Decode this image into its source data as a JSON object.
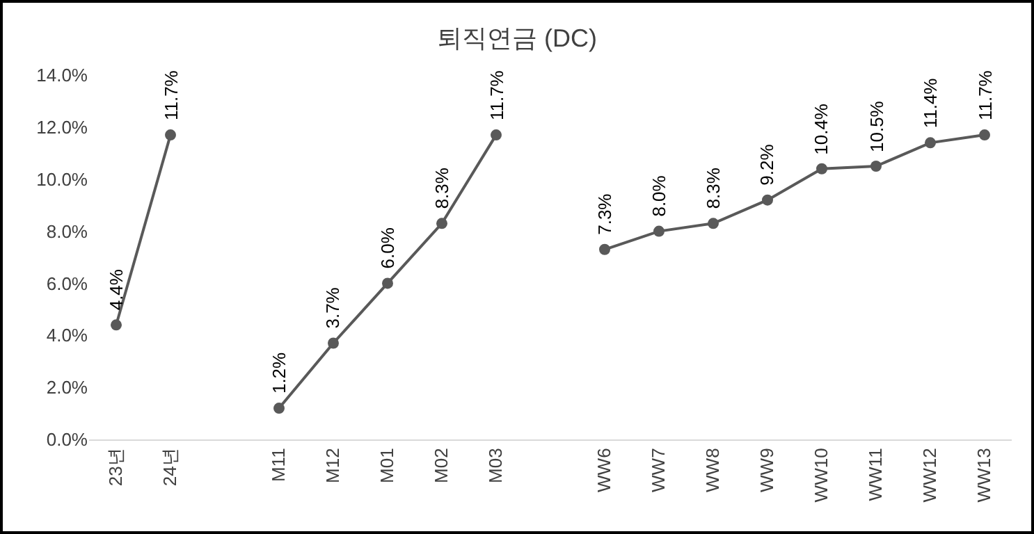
{
  "chart_data": {
    "type": "line",
    "title": "퇴직연금 (DC)",
    "categories": [
      "23년",
      "24년",
      null,
      "M11",
      "M12",
      "M01",
      "M02",
      "M03",
      null,
      "WW6",
      "WW7",
      "WW8",
      "WW9",
      "WW10",
      "WW11",
      "WW12",
      "WW13"
    ],
    "series": [
      {
        "color": "#595959",
        "values": [
          4.4,
          11.7,
          null,
          1.2,
          3.7,
          6.0,
          8.3,
          11.7,
          null,
          7.3,
          8.0,
          8.3,
          9.2,
          10.4,
          10.5,
          11.4,
          11.7
        ],
        "value_labels": [
          "4.4%",
          "11.7%",
          null,
          "1.2%",
          "3.7%",
          "6.0%",
          "8.3%",
          "11.7%",
          null,
          "7.3%",
          "8.0%",
          "8.3%",
          "9.2%",
          "10.4%",
          "10.5%",
          "11.4%",
          "11.7%"
        ]
      }
    ],
    "ylim": [
      0,
      14
    ],
    "yticks": [
      {
        "value": 0,
        "label": "0.0%"
      },
      {
        "value": 2,
        "label": "2.0%"
      },
      {
        "value": 4,
        "label": "4.0%"
      },
      {
        "value": 6,
        "label": "6.0%"
      },
      {
        "value": 8,
        "label": "8.0%"
      },
      {
        "value": 10,
        "label": "10.0%"
      },
      {
        "value": 12,
        "label": "12.0%"
      },
      {
        "value": 14,
        "label": "14.0%"
      }
    ],
    "grid": false,
    "marker": "circle",
    "line_style": "solid"
  }
}
